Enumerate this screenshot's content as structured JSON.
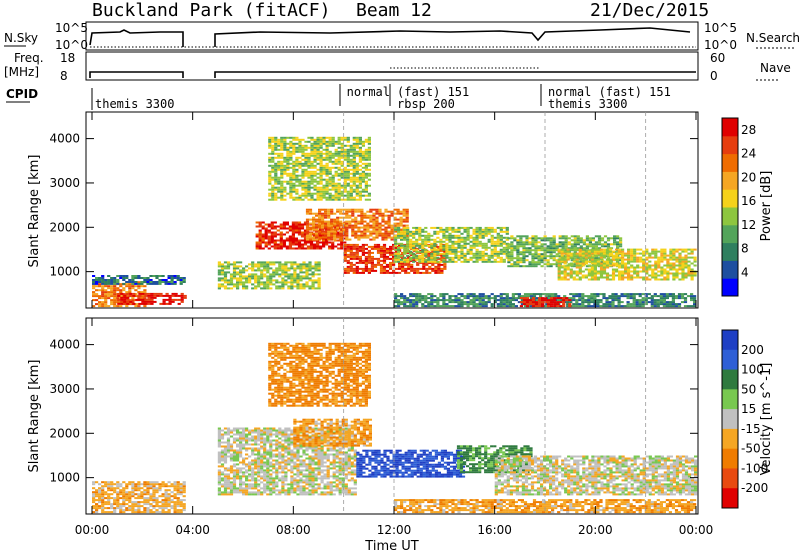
{
  "header": {
    "site_title": "Buckland Park (fitACF)",
    "beam": "Beam 12",
    "date": "21/Dec/2015"
  },
  "top_panels": {
    "nsky_label": "N.Sky",
    "nsearch_label": "N.Search",
    "noise_ticks": [
      "10^5",
      "10^0"
    ],
    "freq_label": "Freq.",
    "freq_unit": "[MHz]",
    "freq_ticks": [
      "18",
      "8"
    ],
    "nave_label": "Nave",
    "nave_ticks": [
      "60",
      "0"
    ],
    "cpid_label": "CPID",
    "cpid_segments": [
      {
        "start": 0.0,
        "text": "themis 3300",
        "row": 1
      },
      {
        "start": 10.0,
        "text": "normal",
        "row": 0
      },
      {
        "start": 12.0,
        "text": "(fast) 151",
        "row": 0
      },
      {
        "start": 12.0,
        "text": "rbsp 200",
        "row": 1
      },
      {
        "start": 18.0,
        "text": "normal (fast) 151",
        "row": 0
      },
      {
        "start": 18.0,
        "text": "themis 3300",
        "row": 1
      }
    ]
  },
  "chart_data": [
    {
      "type": "heatmap",
      "title": "",
      "xlabel": "Time UT",
      "ylabel": "Slant Range [km]",
      "xlim": [
        0,
        24
      ],
      "ylim": [
        180,
        4600
      ],
      "x_ticks": [
        "00:00",
        "04:00",
        "08:00",
        "12:00",
        "16:00",
        "20:00",
        "00:00"
      ],
      "y_ticks": [
        "1000",
        "2000",
        "3000",
        "4000"
      ],
      "y_tick_values": [
        1000,
        2000,
        3000,
        4000
      ],
      "colorbar": {
        "label": "Power [dB]",
        "ticks": [
          "4",
          "8",
          "12",
          "16",
          "20",
          "24",
          "28"
        ],
        "levels": [
          0,
          30
        ],
        "colors": [
          "#0000ff",
          "#1e4fa0",
          "#2f7f5f",
          "#53a45a",
          "#8dc63f",
          "#f5d21b",
          "#f5a623",
          "#ef6c00",
          "#e63d0e",
          "#e00000"
        ]
      },
      "echo_regions": [
        {
          "t0": 0.0,
          "t1": 2.1,
          "r0": 200,
          "r1": 750,
          "level": 22
        },
        {
          "t0": 1.0,
          "t1": 3.7,
          "r0": 250,
          "r1": 500,
          "level": 28
        },
        {
          "t0": 0.0,
          "t1": 3.7,
          "r0": 700,
          "r1": 900,
          "level": 6
        },
        {
          "t0": 5.0,
          "t1": 9.0,
          "r0": 600,
          "r1": 1200,
          "level": 14
        },
        {
          "t0": 6.5,
          "t1": 10.0,
          "r0": 1500,
          "r1": 2100,
          "level": 27
        },
        {
          "t0": 8.5,
          "t1": 12.5,
          "r0": 1700,
          "r1": 2400,
          "level": 22
        },
        {
          "t0": 10.0,
          "t1": 14.0,
          "r0": 950,
          "r1": 1600,
          "level": 26
        },
        {
          "t0": 12.0,
          "t1": 16.5,
          "r0": 1200,
          "r1": 2000,
          "level": 14
        },
        {
          "t0": 7.0,
          "t1": 11.0,
          "r0": 2600,
          "r1": 4000,
          "level": 14
        },
        {
          "t0": 16.5,
          "t1": 21.0,
          "r0": 1100,
          "r1": 1800,
          "level": 12
        },
        {
          "t0": 18.5,
          "t1": 24.0,
          "r0": 800,
          "r1": 1500,
          "level": 16
        },
        {
          "t0": 12.0,
          "t1": 24.0,
          "r0": 200,
          "r1": 500,
          "level": 8
        },
        {
          "t0": 17.0,
          "t1": 19.0,
          "r0": 200,
          "r1": 400,
          "level": 28
        }
      ]
    },
    {
      "type": "heatmap",
      "title": "",
      "xlabel": "Time UT",
      "ylabel": "Slant Range [km]",
      "xlim": [
        0,
        24
      ],
      "ylim": [
        180,
        4600
      ],
      "x_ticks": [
        "00:00",
        "04:00",
        "08:00",
        "12:00",
        "16:00",
        "20:00",
        "00:00"
      ],
      "y_ticks": [
        "1000",
        "2000",
        "3000",
        "4000"
      ],
      "y_tick_values": [
        1000,
        2000,
        3000,
        4000
      ],
      "colorbar": {
        "label": "Velocity [m s^-1]",
        "ticks": [
          "200",
          "100",
          "50",
          "15",
          "-15",
          "-50",
          "-100",
          "-200"
        ],
        "colors": [
          "#1f3fc4",
          "#2f5fd6",
          "#2f7a3f",
          "#78c850",
          "#c0c0c0",
          "#f5a623",
          "#ef7c00",
          "#e84a10",
          "#e00000"
        ]
      },
      "echo_regions": [
        {
          "t0": 0.0,
          "t1": 3.7,
          "r0": 200,
          "r1": 900,
          "velocity": -30
        },
        {
          "t0": 5.0,
          "t1": 10.5,
          "r0": 600,
          "r1": 2100,
          "velocity": 0
        },
        {
          "t0": 8.0,
          "t1": 11.0,
          "r0": 1700,
          "r1": 2300,
          "velocity": -40
        },
        {
          "t0": 10.5,
          "t1": 14.8,
          "r0": 1000,
          "r1": 1600,
          "velocity": 200
        },
        {
          "t0": 14.5,
          "t1": 17.5,
          "r0": 1100,
          "r1": 1700,
          "velocity": 60
        },
        {
          "t0": 12.0,
          "t1": 24.0,
          "r0": 200,
          "r1": 500,
          "velocity": -40
        },
        {
          "t0": 16.0,
          "t1": 24.0,
          "r0": 600,
          "r1": 1500,
          "velocity": 0
        },
        {
          "t0": 7.0,
          "t1": 11.0,
          "r0": 2600,
          "r1": 4000,
          "velocity": -60
        }
      ]
    }
  ]
}
